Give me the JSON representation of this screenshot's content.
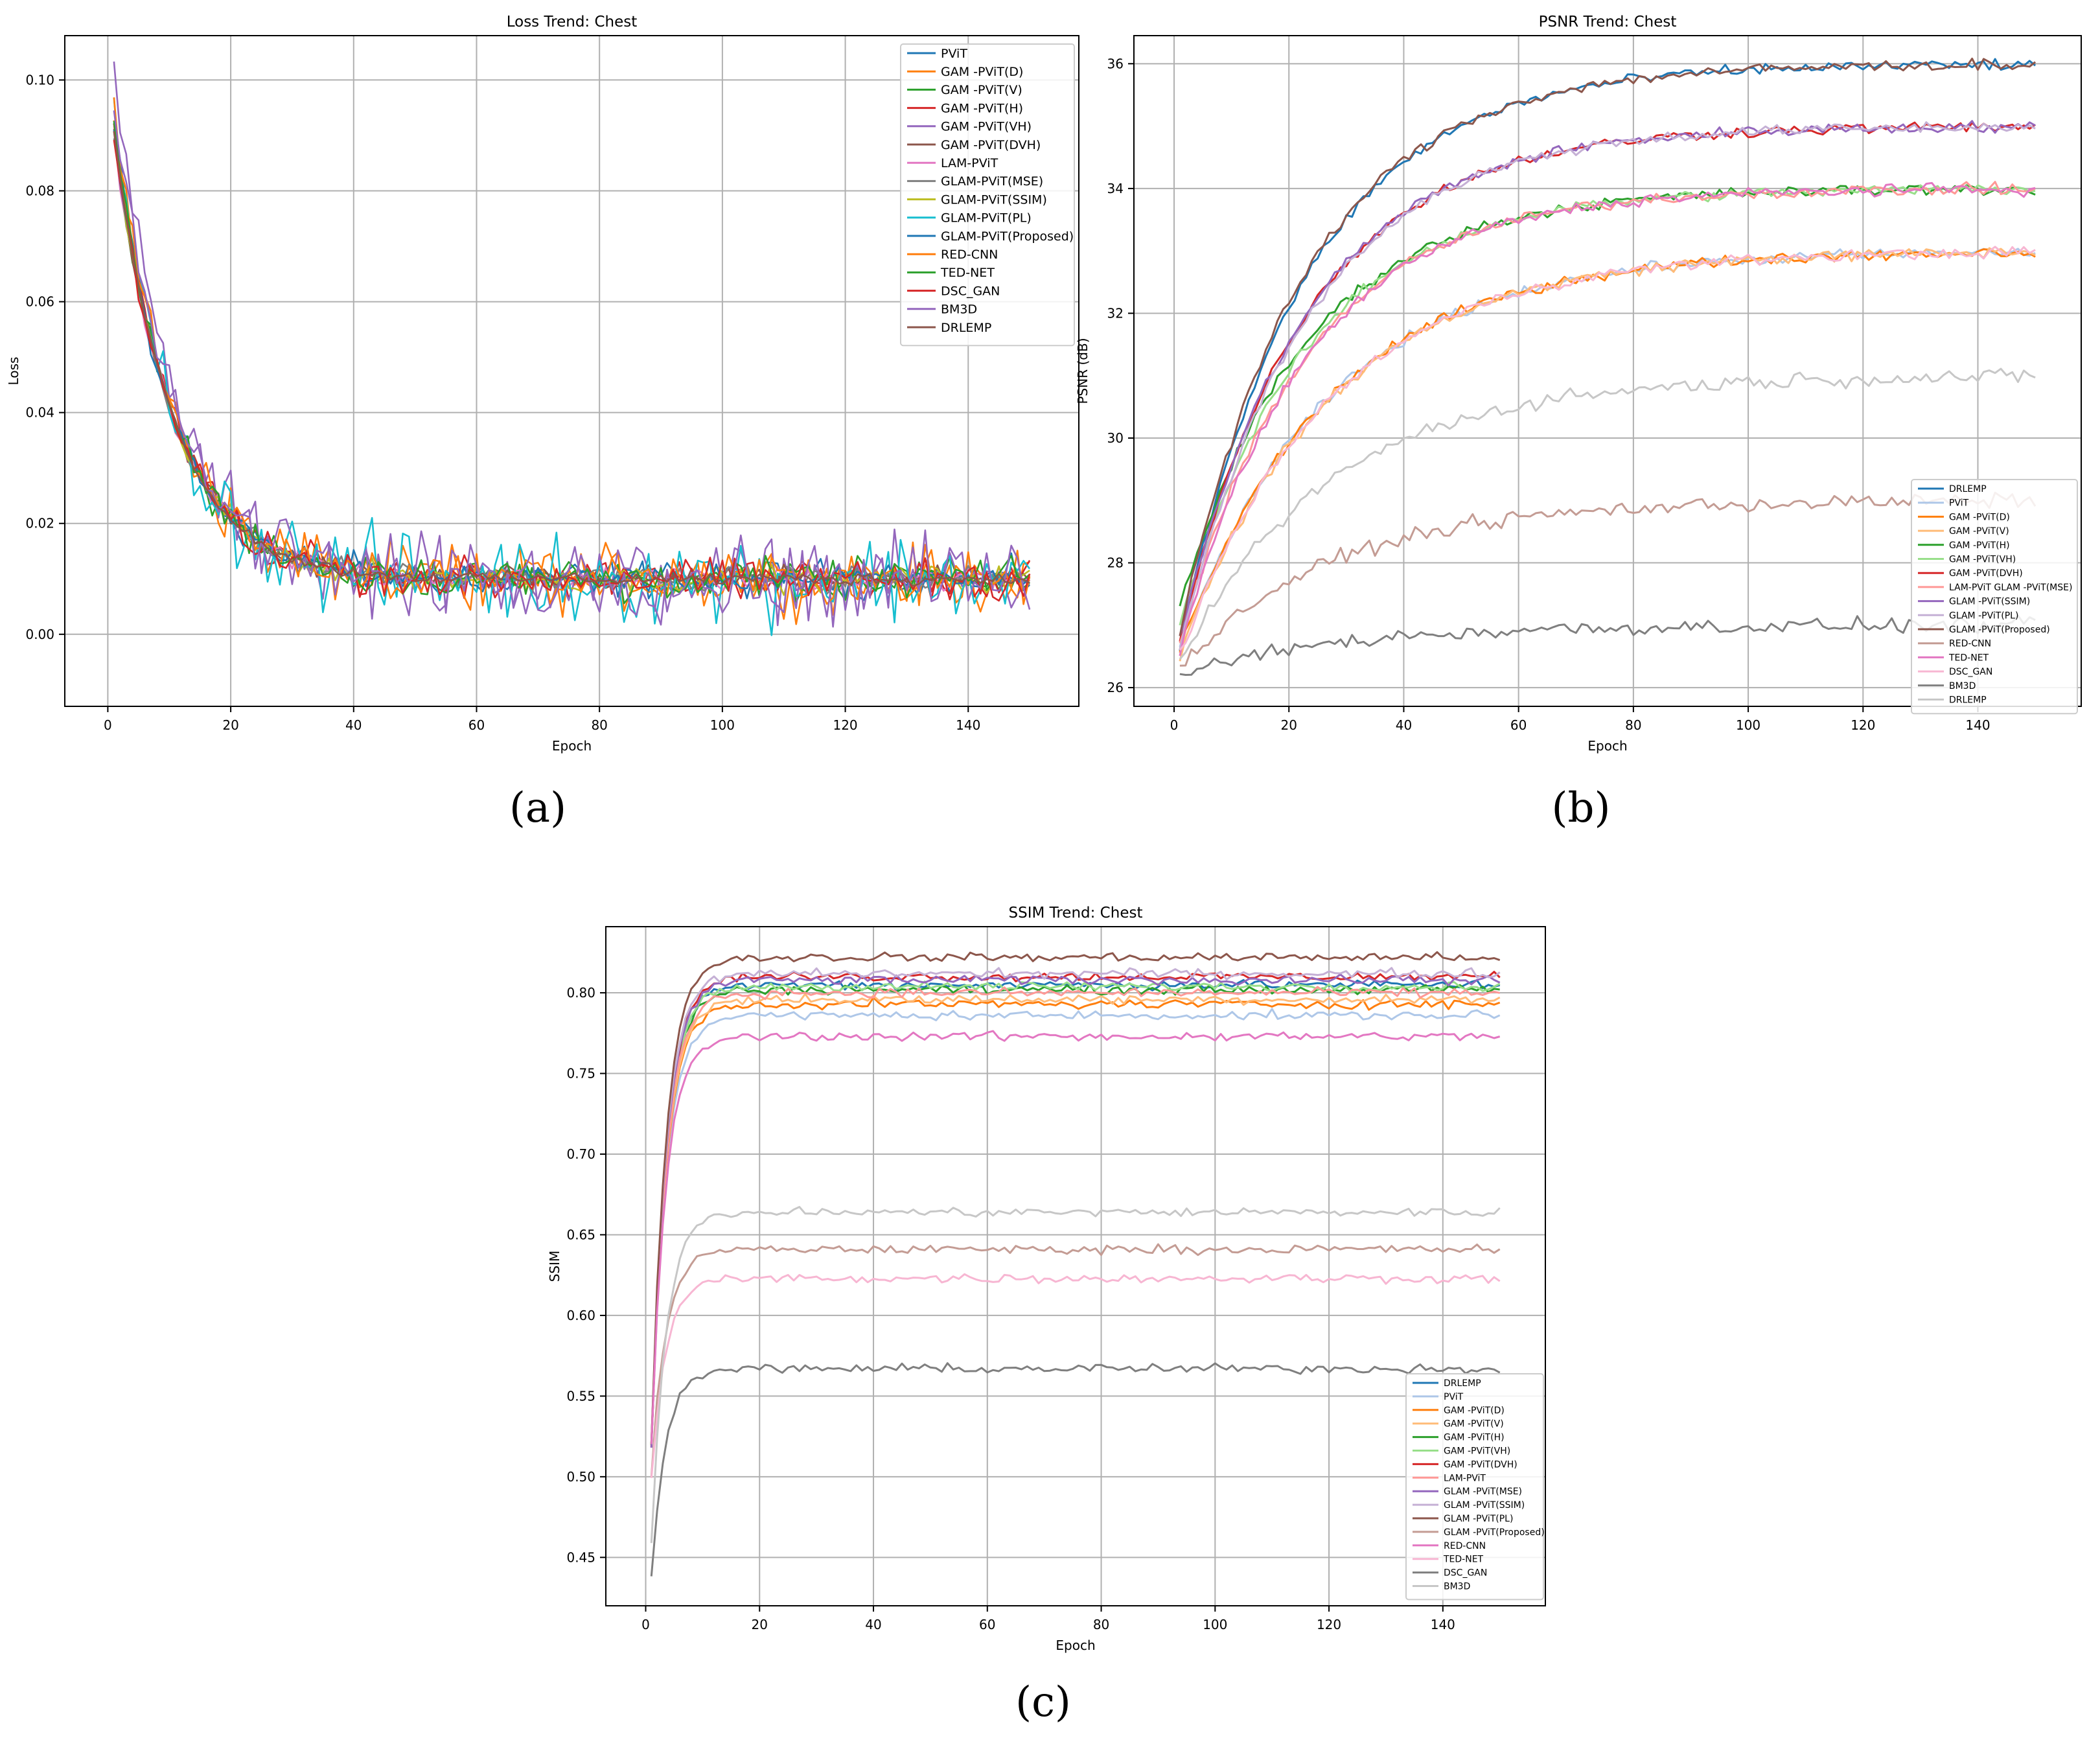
{
  "panel_labels": [
    "(a)",
    "(b)",
    "(c)"
  ],
  "colors": {
    "blue": "#1f77b4",
    "orange": "#ff7f0e",
    "green": "#2ca02c",
    "red": "#d62728",
    "purple": "#9467bd",
    "brown": "#8c564b",
    "pink": "#e377c2",
    "gray": "#7f7f7f",
    "olive": "#bcbd22",
    "cyan": "#17becf",
    "darkred": "#a0202a",
    "darkbrown": "#6b3b2f"
  },
  "chart_data": [
    {
      "type": "line",
      "title": "Loss Trend: Chest",
      "xlabel": "Epoch",
      "ylabel": "Loss",
      "xlim": [
        -7,
        158
      ],
      "ylim": [
        -0.013,
        0.108
      ],
      "xticks": [
        0,
        20,
        40,
        60,
        80,
        100,
        120,
        140
      ],
      "yticks": [
        0.0,
        0.02,
        0.04,
        0.06,
        0.08,
        0.1
      ],
      "ytick_labels": [
        "0.00",
        "0.02",
        "0.04",
        "0.06",
        "0.08",
        "0.10"
      ],
      "legend_position": "top-right",
      "model": "exp_decay",
      "series": [
        {
          "name": "PViT",
          "color": "#1f77b4",
          "start": 0.092,
          "plateau": 0.01,
          "noise": 0.003
        },
        {
          "name": "GAM -PViT(D)",
          "color": "#ff7f0e",
          "start": 0.094,
          "plateau": 0.01,
          "noise": 0.005
        },
        {
          "name": "GAM -PViT(V)",
          "color": "#2ca02c",
          "start": 0.09,
          "plateau": 0.01,
          "noise": 0.003
        },
        {
          "name": "GAM -PViT(H)",
          "color": "#d62728",
          "start": 0.091,
          "plateau": 0.01,
          "noise": 0.003
        },
        {
          "name": "GAM -PViT(VH)",
          "color": "#9467bd",
          "start": 0.102,
          "plateau": 0.01,
          "noise": 0.006
        },
        {
          "name": "GAM -PViT(DVH)",
          "color": "#8c564b",
          "start": 0.09,
          "plateau": 0.01,
          "noise": 0.002
        },
        {
          "name": "LAM-PViT",
          "color": "#e377c2",
          "start": 0.089,
          "plateau": 0.01,
          "noise": 0.002
        },
        {
          "name": "GLAM-PViT(MSE)",
          "color": "#7f7f7f",
          "start": 0.09,
          "plateau": 0.01,
          "noise": 0.002
        },
        {
          "name": "GLAM-PViT(SSIM)",
          "color": "#bcbd22",
          "start": 0.09,
          "plateau": 0.01,
          "noise": 0.002
        },
        {
          "name": "GLAM-PViT(PL)",
          "color": "#17becf",
          "start": 0.093,
          "plateau": 0.01,
          "noise": 0.007
        },
        {
          "name": "GLAM-PViT(Proposed)",
          "color": "#1f77b4",
          "start": 0.09,
          "plateau": 0.01,
          "noise": 0.002
        },
        {
          "name": "RED-CNN",
          "color": "#ff7f0e",
          "start": 0.095,
          "plateau": 0.01,
          "noise": 0.004
        },
        {
          "name": "TED-NET",
          "color": "#2ca02c",
          "start": 0.092,
          "plateau": 0.01,
          "noise": 0.003
        },
        {
          "name": "DSC_GAN",
          "color": "#d62728",
          "start": 0.09,
          "plateau": 0.01,
          "noise": 0.003
        },
        {
          "name": "BM3D",
          "color": "#9467bd",
          "start": 0.097,
          "plateau": 0.01,
          "noise": 0.006
        },
        {
          "name": "DRLEMP",
          "color": "#8c564b",
          "start": 0.091,
          "plateau": 0.01,
          "noise": 0.001
        }
      ]
    },
    {
      "type": "line",
      "title": "PSNR Trend: Chest",
      "xlabel": "Epoch",
      "ylabel": "PSNR (dB)",
      "xlim": [
        -7,
        158
      ],
      "ylim": [
        25.7,
        36.45
      ],
      "xticks": [
        0,
        20,
        40,
        60,
        80,
        100,
        120,
        140
      ],
      "yticks": [
        26,
        28,
        30,
        32,
        34,
        36
      ],
      "ytick_labels": [
        "26",
        "28",
        "30",
        "32",
        "34",
        "36"
      ],
      "legend_position": "bottom-right",
      "model": "exp_rise",
      "series": [
        {
          "name": "DRLEMP",
          "color": "#1f77b4",
          "start": 26.7,
          "plateau": 36.0,
          "noise": 0.06
        },
        {
          "name": "PViT",
          "color": "#aec7e8",
          "start": 26.6,
          "plateau": 33.0,
          "noise": 0.06
        },
        {
          "name": "GAM -PViT(D)",
          "color": "#ff7f0e",
          "start": 26.6,
          "plateau": 33.0,
          "noise": 0.06
        },
        {
          "name": "GAM -PViT(V)",
          "color": "#ffbb78",
          "start": 26.5,
          "plateau": 33.0,
          "noise": 0.06
        },
        {
          "name": "GAM -PViT(H)",
          "color": "#2ca02c",
          "start": 27.3,
          "plateau": 34.0,
          "noise": 0.06
        },
        {
          "name": "GAM -PViT(VH)",
          "color": "#98df8a",
          "start": 27.0,
          "plateau": 34.0,
          "noise": 0.06
        },
        {
          "name": "GAM -PViT(DVH)",
          "color": "#d62728",
          "start": 26.8,
          "plateau": 35.0,
          "noise": 0.06
        },
        {
          "name": "LAM-PViT GLAM -PViT(MSE)",
          "color": "#ff9896",
          "start": 26.7,
          "plateau": 34.0,
          "noise": 0.06
        },
        {
          "name": "GLAM -PViT(SSIM)",
          "color": "#9467bd",
          "start": 26.8,
          "plateau": 35.0,
          "noise": 0.06
        },
        {
          "name": "GLAM -PViT(PL)",
          "color": "#c5b0d5",
          "start": 26.6,
          "plateau": 35.0,
          "noise": 0.06
        },
        {
          "name": "GLAM -PViT(Proposed)",
          "color": "#8c564b",
          "start": 26.9,
          "plateau": 36.0,
          "noise": 0.06
        },
        {
          "name": "RED-CNN",
          "color": "#c49c94",
          "start": 26.3,
          "plateau": 29.0,
          "noise": 0.08
        },
        {
          "name": "TED-NET",
          "color": "#e377c2",
          "start": 26.6,
          "plateau": 34.0,
          "noise": 0.06
        },
        {
          "name": "DSC_GAN",
          "color": "#f7b6d2",
          "start": 26.5,
          "plateau": 33.0,
          "noise": 0.06
        },
        {
          "name": "BM3D",
          "color": "#7f7f7f",
          "start": 26.2,
          "plateau": 27.0,
          "noise": 0.08
        },
        {
          "name": "DRLEMP",
          "color": "#c7c7c7",
          "start": 26.4,
          "plateau": 31.0,
          "noise": 0.08
        }
      ]
    },
    {
      "type": "line",
      "title": "SSIM Trend: Chest",
      "xlabel": "Epoch",
      "ylabel": "SSIM",
      "xlim": [
        -7,
        158
      ],
      "ylim": [
        0.42,
        0.841
      ],
      "xticks": [
        0,
        20,
        40,
        60,
        80,
        100,
        120,
        140
      ],
      "yticks": [
        0.45,
        0.5,
        0.55,
        0.6,
        0.65,
        0.7,
        0.75,
        0.8
      ],
      "ytick_labels": [
        "0.45",
        "0.50",
        "0.55",
        "0.60",
        "0.65",
        "0.70",
        "0.75",
        "0.80"
      ],
      "legend_position": "bottom-right",
      "model": "exp_rise_fast",
      "series": [
        {
          "name": "DRLEMP",
          "color": "#1f77b4",
          "start": 0.52,
          "plateau": 0.805,
          "noise": 0.002
        },
        {
          "name": "PViT",
          "color": "#aec7e8",
          "start": 0.52,
          "plateau": 0.786,
          "noise": 0.002
        },
        {
          "name": "GAM -PViT(D)",
          "color": "#ff7f0e",
          "start": 0.52,
          "plateau": 0.793,
          "noise": 0.002
        },
        {
          "name": "GAM -PViT(V)",
          "color": "#ffbb78",
          "start": 0.52,
          "plateau": 0.796,
          "noise": 0.002
        },
        {
          "name": "GAM -PViT(H)",
          "color": "#2ca02c",
          "start": 0.52,
          "plateau": 0.802,
          "noise": 0.002
        },
        {
          "name": "GAM -PViT(VH)",
          "color": "#98df8a",
          "start": 0.52,
          "plateau": 0.804,
          "noise": 0.002
        },
        {
          "name": "GAM -PViT(DVH)",
          "color": "#d62728",
          "start": 0.52,
          "plateau": 0.81,
          "noise": 0.002
        },
        {
          "name": "LAM-PViT",
          "color": "#ff9896",
          "start": 0.52,
          "plateau": 0.8,
          "noise": 0.002
        },
        {
          "name": "GLAM -PViT(MSE)",
          "color": "#9467bd",
          "start": 0.52,
          "plateau": 0.808,
          "noise": 0.002
        },
        {
          "name": "GLAM -PViT(SSIM)",
          "color": "#c5b0d5",
          "start": 0.52,
          "plateau": 0.812,
          "noise": 0.002
        },
        {
          "name": "GLAM -PViT(PL)",
          "color": "#8c564b",
          "start": 0.52,
          "plateau": 0.822,
          "noise": 0.002
        },
        {
          "name": "GLAM -PViT(Proposed)",
          "color": "#c49c94",
          "start": 0.5,
          "plateau": 0.641,
          "noise": 0.002
        },
        {
          "name": "RED-CNN",
          "color": "#e377c2",
          "start": 0.52,
          "plateau": 0.773,
          "noise": 0.002
        },
        {
          "name": "TED-NET",
          "color": "#f7b6d2",
          "start": 0.5,
          "plateau": 0.623,
          "noise": 0.002
        },
        {
          "name": "DSC_GAN",
          "color": "#7f7f7f",
          "start": 0.44,
          "plateau": 0.567,
          "noise": 0.002
        },
        {
          "name": "BM3D",
          "color": "#c7c7c7",
          "start": 0.46,
          "plateau": 0.664,
          "noise": 0.002
        }
      ]
    }
  ]
}
